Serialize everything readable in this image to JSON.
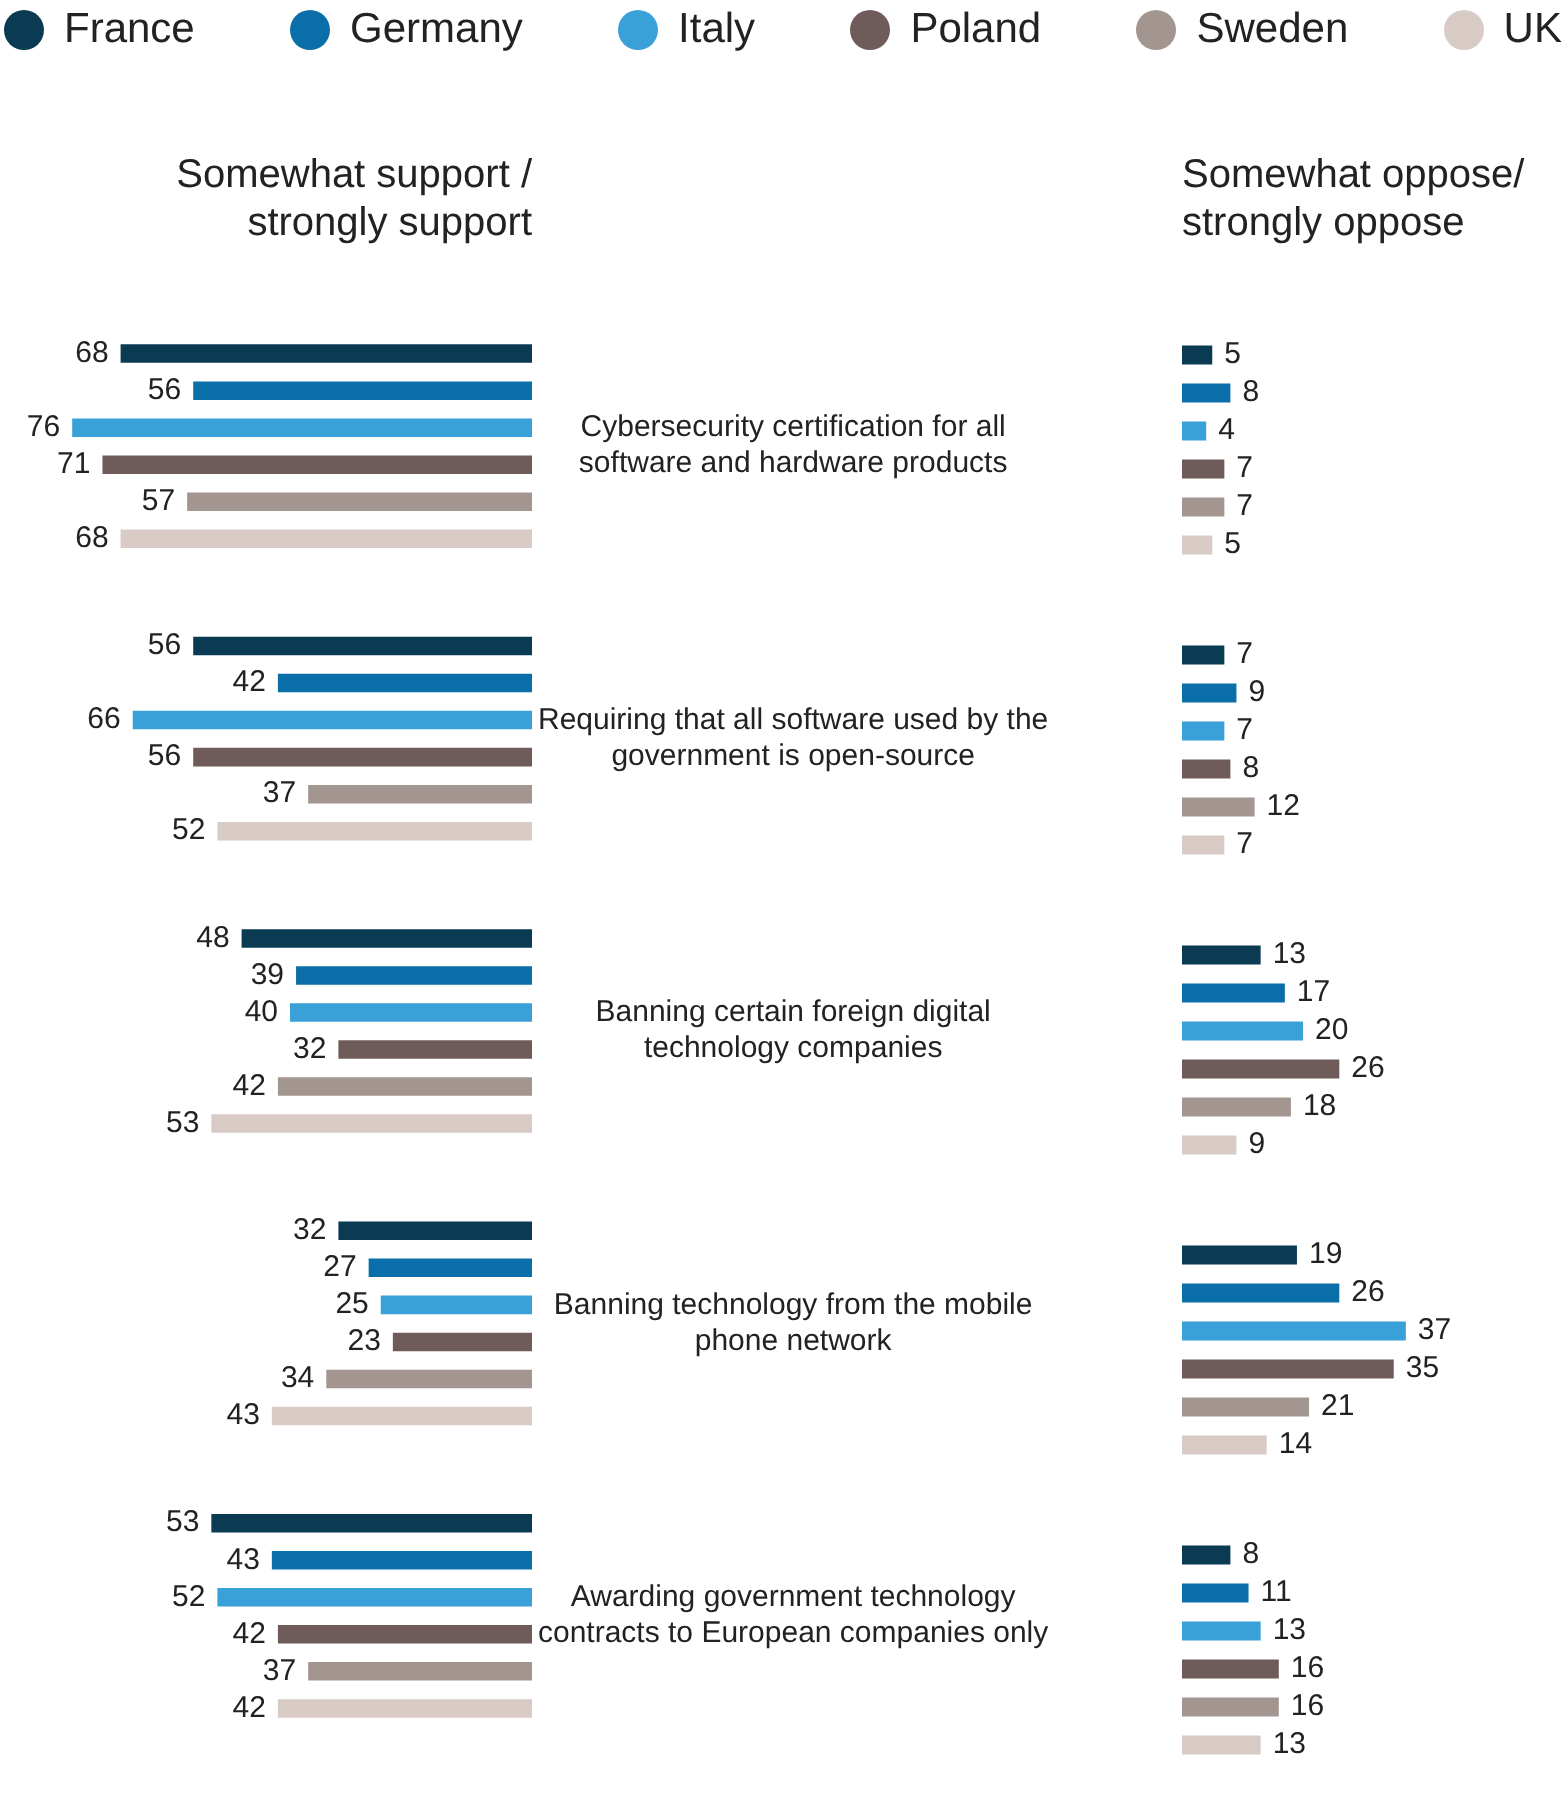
{
  "chart_data": [
    {
      "type": "bar",
      "orientation": "horizontal",
      "title": "Somewhat support / strongly support",
      "categories": [
        "Cybersecurity certification for all software and hardware products",
        "Requiring that all software used by the government is open-source",
        "Banning certain foreign digital technology companies",
        "Banning technology from the mobile phone network",
        "Awarding government technology contracts to European companies only"
      ],
      "series": [
        {
          "name": "France",
          "color": "#0b3a53",
          "values": [
            68,
            56,
            48,
            32,
            53
          ]
        },
        {
          "name": "Germany",
          "color": "#0a6fa8",
          "values": [
            56,
            42,
            39,
            27,
            43
          ]
        },
        {
          "name": "Italy",
          "color": "#3aa0d8",
          "values": [
            76,
            66,
            40,
            25,
            52
          ]
        },
        {
          "name": "Poland",
          "color": "#6f5c5a",
          "values": [
            71,
            56,
            32,
            23,
            42
          ]
        },
        {
          "name": "Sweden",
          "color": "#a39590",
          "values": [
            57,
            37,
            42,
            34,
            37
          ]
        },
        {
          "name": "UK",
          "color": "#d8cbc6",
          "values": [
            68,
            52,
            53,
            43,
            42
          ]
        }
      ],
      "data_labels": true,
      "legend": "top",
      "tick_labels": "y"
    },
    {
      "type": "bar",
      "orientation": "horizontal",
      "title": "Somewhat oppose/ strongly oppose",
      "categories": [
        null,
        null,
        null,
        null,
        null
      ],
      "series": [
        {
          "color": "#0b3a53",
          "values": [
            5,
            7,
            13,
            19,
            8
          ]
        },
        {
          "color": "#0a6fa8",
          "values": [
            8,
            9,
            17,
            26,
            11
          ]
        },
        {
          "color": "#3aa0d8",
          "values": [
            4,
            7,
            20,
            37,
            13
          ]
        },
        {
          "color": "#6f5c5a",
          "values": [
            7,
            8,
            26,
            35,
            16
          ]
        },
        {
          "color": "#a39590",
          "values": [
            7,
            12,
            18,
            21,
            16
          ]
        },
        {
          "color": "#d8cbc6",
          "values": [
            5,
            7,
            9,
            14,
            13
          ]
        }
      ],
      "data_labels": true,
      "tick_labels": false
    }
  ]
}
